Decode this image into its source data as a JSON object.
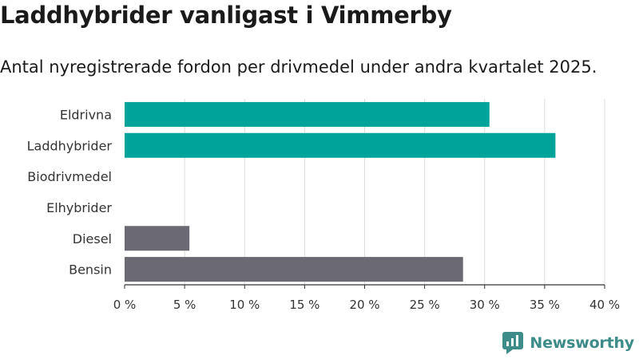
{
  "header": {
    "title": "Laddhybrider vanligast i Vimmerby",
    "subtitle": "Antal nyregistrerade fordon per drivmedel under andra kvartalet 2025."
  },
  "brand": {
    "name": "Newsworthy",
    "icon": "newsworthy-logo-icon",
    "color": "#3d8c8a"
  },
  "chart_data": {
    "type": "bar",
    "orientation": "horizontal",
    "title": "Laddhybrider vanligast i Vimmerby",
    "subtitle": "Antal nyregistrerade fordon per drivmedel under andra kvartalet 2025.",
    "xlabel": "",
    "ylabel": "",
    "categories": [
      "Eldrivna",
      "Laddhybrider",
      "Biodrivmedel",
      "Elhybrider",
      "Diesel",
      "Bensin"
    ],
    "values": [
      30.4,
      35.9,
      0,
      0,
      5.4,
      28.2
    ],
    "bar_colors": [
      "#00a39a",
      "#00a39a",
      "#00a39a",
      "#00a39a",
      "#6b6a72",
      "#6b6a72"
    ],
    "xlim": [
      0,
      40
    ],
    "xticks": [
      0,
      5,
      10,
      15,
      20,
      25,
      30,
      35,
      40
    ],
    "tick_labels": [
      "0 %",
      "5 %",
      "10 %",
      "15 %",
      "20 %",
      "25 %",
      "30 %",
      "35 %",
      "40 %"
    ],
    "grid": true,
    "legend": "none"
  }
}
